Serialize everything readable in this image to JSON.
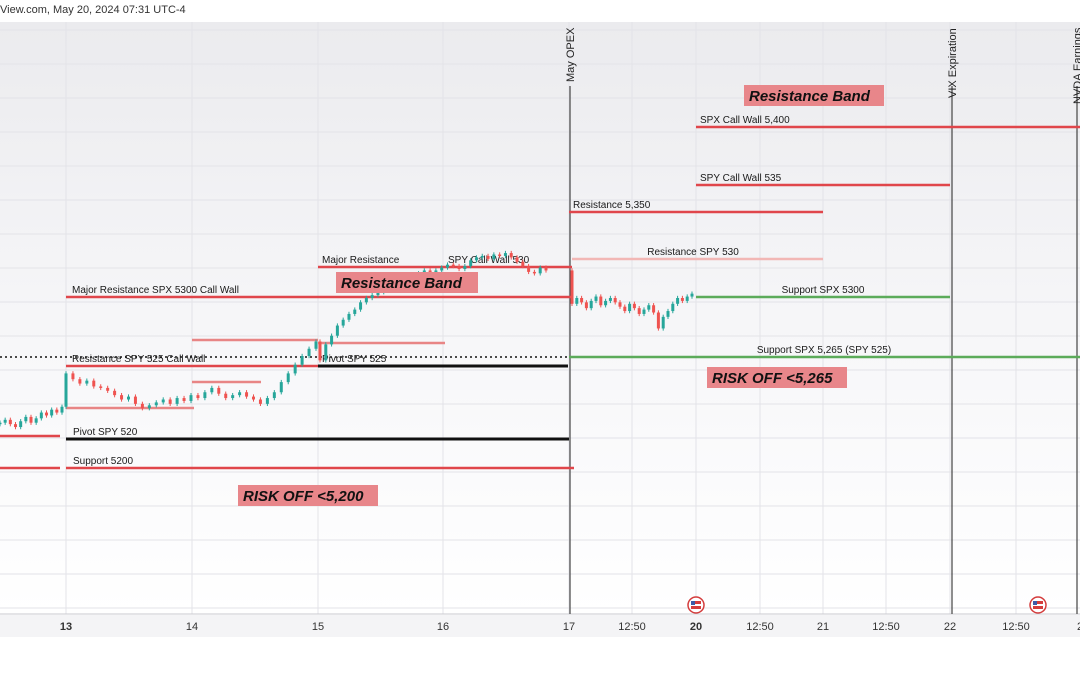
{
  "header": {
    "text": "View.com, May 20, 2024 07:31 UTC-4"
  },
  "colors": {
    "resistance": "#e0464b",
    "resistance_light": "#f2b7b5",
    "support": "#5cab5a",
    "pivot": "#111111",
    "event_line": "#444444",
    "box_fill": "#e8868a",
    "candle_up": "#26a69a",
    "candle_down": "#ef5350"
  },
  "chart_data": {
    "type": "line",
    "title": "",
    "xlabel": "",
    "ylabel": "",
    "grid": true,
    "x_ticks": [
      {
        "label": "13",
        "bold": true
      },
      {
        "label": "14",
        "bold": false
      },
      {
        "label": "15",
        "bold": false
      },
      {
        "label": "16",
        "bold": false
      },
      {
        "label": "17",
        "bold": false
      },
      {
        "label": "12:50",
        "bold": false
      },
      {
        "label": "20",
        "bold": true
      },
      {
        "label": "12:50",
        "bold": false
      },
      {
        "label": "21",
        "bold": false
      },
      {
        "label": "12:50",
        "bold": false
      },
      {
        "label": "22",
        "bold": false
      },
      {
        "label": "12:50",
        "bold": false
      },
      {
        "label": "2",
        "bold": false
      }
    ],
    "events": [
      {
        "label": "May OPEX",
        "day": "17"
      },
      {
        "label": "VIX Expiration",
        "day": "22"
      },
      {
        "label": "NVDA Earnings",
        "day": "23"
      }
    ],
    "levels": [
      {
        "label": "SPX Call Wall 5,400",
        "kind": "resistance"
      },
      {
        "label": "SPY Call Wall 535",
        "kind": "resistance"
      },
      {
        "label": "Resistance 5,350",
        "kind": "resistance"
      },
      {
        "label": "Major Resistance",
        "kind": "resistance"
      },
      {
        "label": "SPY Call Wall 530",
        "kind": "resistance"
      },
      {
        "label": "Resistance SPY 530",
        "kind": "resistance_light"
      },
      {
        "label": "Major Resistance SPX 5300 Call Wall",
        "kind": "resistance"
      },
      {
        "label": "Support SPX 5300",
        "kind": "support"
      },
      {
        "label": "Resistance SPY 525 Call Wall",
        "kind": "resistance"
      },
      {
        "label": "Pivot SPY 525",
        "kind": "pivot"
      },
      {
        "label": "Support SPX 5,265 (SPY 525)",
        "kind": "support"
      },
      {
        "label": "Pivot SPY 520",
        "kind": "pivot"
      },
      {
        "label": "Support 5200",
        "kind": "resistance"
      }
    ],
    "annotations": [
      {
        "label": "Resistance Band"
      },
      {
        "label": "Resistance Band"
      },
      {
        "label": "RISK OFF <5,265"
      },
      {
        "label": "RISK OFF <5,200"
      }
    ],
    "series": [
      {
        "values": [
          5219,
          5221,
          5218,
          5216,
          5220,
          5223,
          5219,
          5222,
          5226,
          5224,
          5228,
          5226,
          5230,
          5253,
          5249,
          5246,
          5248,
          5244,
          5243,
          5241,
          5238,
          5235,
          5237,
          5232,
          5229,
          5231,
          5233,
          5235,
          5232,
          5236,
          5234,
          5238,
          5236,
          5240,
          5243,
          5239,
          5236,
          5238,
          5240,
          5237,
          5235,
          5232,
          5236,
          5240,
          5247,
          5253,
          5259,
          5265,
          5270,
          5275,
          5262,
          5273,
          5279,
          5286,
          5290,
          5294,
          5297,
          5302,
          5305,
          5307,
          5309,
          5311,
          5313,
          5315,
          5317,
          5320,
          5318,
          5322,
          5324,
          5322,
          5324,
          5326,
          5328,
          5327,
          5325,
          5327,
          5331,
          5333,
          5334,
          5332,
          5335,
          5334,
          5336,
          5333,
          5330,
          5327,
          5323,
          5322,
          5326,
          5324,
          5301,
          5305,
          5302,
          5298,
          5303,
          5306,
          5300,
          5303,
          5305,
          5302,
          5299,
          5296,
          5301,
          5298,
          5294,
          5297,
          5300,
          5295,
          5284,
          5292,
          5296,
          5301,
          5305,
          5303,
          5306,
          5308
        ]
      }
    ]
  }
}
